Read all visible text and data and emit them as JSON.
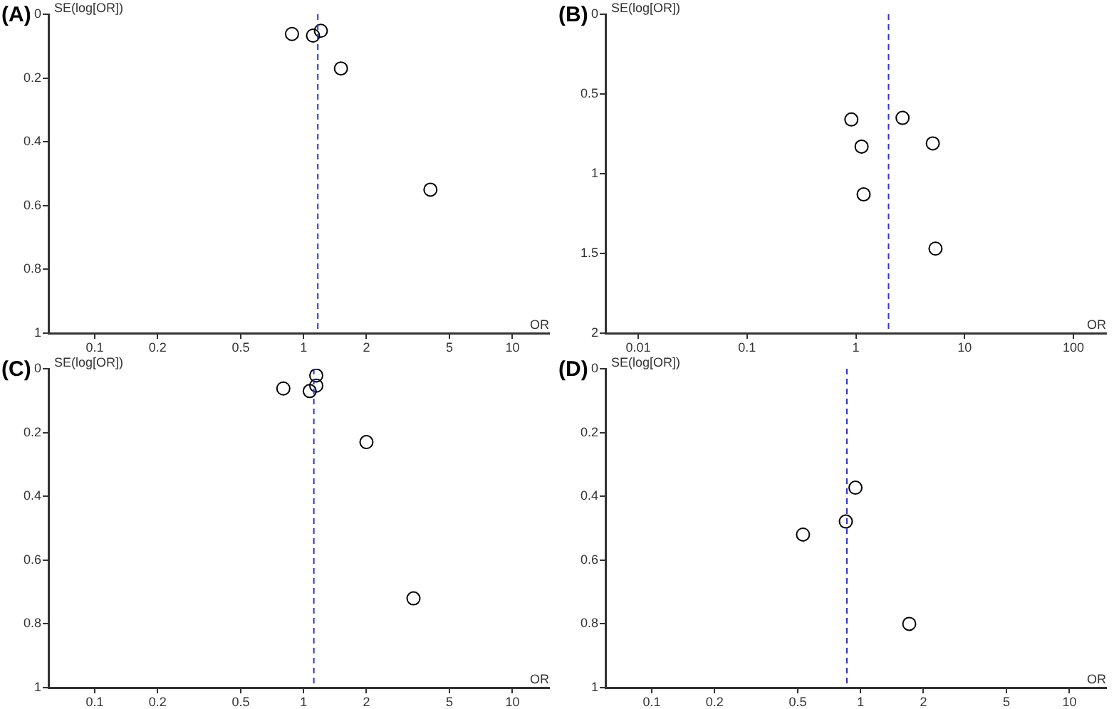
{
  "chart_data": [
    {
      "type": "scatter",
      "title": "(A)",
      "xlabel": "OR",
      "ylabel": "SE(log[OR])",
      "x": [
        0.88,
        1.11,
        1.21,
        1.51,
        4.05
      ],
      "series": [
        {
          "color": "#000000",
          "values": [
            0.062,
            0.067,
            0.052,
            0.17,
            0.55
          ]
        }
      ],
      "xlim": [
        0.06,
        15
      ],
      "xticks": [
        0.1,
        0.2,
        0.5,
        1,
        2,
        5,
        10
      ],
      "ylim": [
        1,
        0
      ],
      "yticks": [
        0,
        0.2,
        0.4,
        0.6,
        0.8,
        1
      ],
      "log": "x",
      "marker": "circle",
      "grid": false,
      "ref_lines": [
        {
          "axis": "x",
          "value": 1.17,
          "color": "#3333cc",
          "line_style": "dashed"
        }
      ]
    },
    {
      "type": "scatter",
      "title": "(B)",
      "xlabel": "OR",
      "ylabel": "SE(log[OR])",
      "x": [
        0.91,
        2.69,
        1.13,
        5.1,
        1.18,
        5.4
      ],
      "series": [
        {
          "color": "#000000",
          "values": [
            0.66,
            0.65,
            0.83,
            0.81,
            1.13,
            1.47
          ]
        }
      ],
      "xlim": [
        0.005,
        200
      ],
      "xticks": [
        0.01,
        0.1,
        1,
        10,
        100
      ],
      "ylim": [
        2,
        0
      ],
      "yticks": [
        0,
        0.5,
        1,
        1.5,
        2
      ],
      "log": "x",
      "marker": "circle",
      "grid": false,
      "ref_lines": [
        {
          "axis": "x",
          "value": 2.0,
          "color": "#3333cc",
          "line_style": "dashed"
        }
      ]
    },
    {
      "type": "scatter",
      "title": "(C)",
      "xlabel": "OR",
      "ylabel": "SE(log[OR])",
      "x": [
        0.8,
        1.07,
        1.15,
        1.15,
        2.0,
        3.36
      ],
      "series": [
        {
          "color": "#000000",
          "values": [
            0.062,
            0.07,
            0.053,
            0.021,
            0.23,
            0.72
          ]
        }
      ],
      "xlim": [
        0.06,
        15
      ],
      "xticks": [
        0.1,
        0.2,
        0.5,
        1,
        2,
        5,
        10
      ],
      "ylim": [
        1,
        0
      ],
      "yticks": [
        0,
        0.2,
        0.4,
        0.6,
        0.8,
        1
      ],
      "log": "x",
      "marker": "circle",
      "grid": false,
      "ref_lines": [
        {
          "axis": "x",
          "value": 1.12,
          "color": "#3333cc",
          "line_style": "dashed"
        }
      ]
    },
    {
      "type": "scatter",
      "title": "(D)",
      "xlabel": "OR",
      "ylabel": "SE(log[OR])",
      "x": [
        0.945,
        0.85,
        0.53,
        1.71
      ],
      "series": [
        {
          "color": "#000000",
          "values": [
            0.373,
            0.479,
            0.52,
            0.8
          ]
        }
      ],
      "xlim": [
        0.06,
        15
      ],
      "xticks": [
        0.1,
        0.2,
        0.5,
        1,
        2,
        5,
        10
      ],
      "ylim": [
        1,
        0
      ],
      "yticks": [
        0,
        0.2,
        0.4,
        0.6,
        0.8,
        1
      ],
      "log": "x",
      "marker": "circle",
      "grid": false,
      "ref_lines": [
        {
          "axis": "x",
          "value": 0.86,
          "color": "#3333cc",
          "line_style": "dashed"
        }
      ]
    }
  ]
}
